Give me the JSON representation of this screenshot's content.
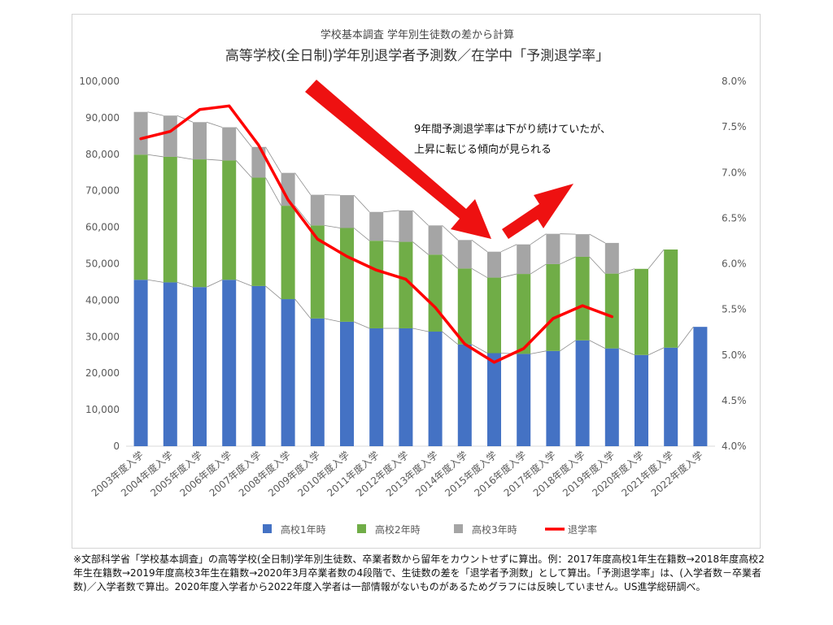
{
  "chart_data": {
    "type": "bar",
    "stacked": true,
    "subtitle": "学校基本調査 学年別生徒数の差から計算",
    "title": "高等学校(全日制)学年別退学者予測数／在学中「予測退学率」",
    "categories": [
      "2003年度入学",
      "2004年度入学",
      "2005年度入学",
      "2006年度入学",
      "2007年度入学",
      "2008年度入学",
      "2009年度入学",
      "2010年度入学",
      "2011年度入学",
      "2012年度入学",
      "2013年度入学",
      "2014年度入学",
      "2015年度入学",
      "2016年度入学",
      "2017年度入学",
      "2018年度入学",
      "2019年度入学",
      "2020年度入学",
      "2021年度入学",
      "2022年度入学"
    ],
    "y_left": {
      "ylim": [
        0,
        100000
      ],
      "ticks": [
        "0",
        "10,000",
        "20,000",
        "30,000",
        "40,000",
        "50,000",
        "60,000",
        "70,000",
        "80,000",
        "90,000",
        "100,000"
      ]
    },
    "y_right": {
      "ylim": [
        4.0,
        8.0
      ],
      "ticks": [
        "4.0%",
        "4.5%",
        "5.0%",
        "5.5%",
        "6.0%",
        "6.5%",
        "7.0%",
        "7.5%",
        "8.0%"
      ]
    },
    "series": [
      {
        "name": "高校1年時",
        "color": "#4472c4",
        "values": [
          45600,
          44900,
          43600,
          45600,
          43900,
          40300,
          35000,
          34100,
          32300,
          32300,
          31400,
          27900,
          25500,
          25300,
          26100,
          29000,
          26800,
          25000,
          27000,
          32700
        ]
      },
      {
        "name": "高校2年時",
        "color": "#70ad47",
        "values": [
          34300,
          34400,
          35000,
          32700,
          29700,
          25600,
          25500,
          25700,
          24000,
          23700,
          21100,
          20800,
          20700,
          21900,
          23800,
          22900,
          20500,
          23600,
          26900,
          null
        ]
      },
      {
        "name": "高校3年時",
        "color": "#a5a5a5",
        "values": [
          11700,
          11300,
          10200,
          9100,
          8400,
          9000,
          8400,
          9000,
          7900,
          8600,
          8000,
          7800,
          7100,
          8100,
          8300,
          6200,
          8400,
          null,
          null,
          null
        ]
      },
      {
        "name": "退学率",
        "color": "#ff0000",
        "type": "line",
        "axis": "right",
        "values": [
          7.37,
          7.45,
          7.69,
          7.73,
          7.3,
          6.7,
          6.27,
          6.08,
          5.93,
          5.83,
          5.52,
          5.12,
          4.92,
          5.07,
          5.4,
          5.54,
          5.42,
          null,
          null,
          null
        ]
      }
    ],
    "legend_position": "bottom",
    "annotation": {
      "line1": "9年間予測退学率は下がり続けていたが、",
      "line2": "上昇に転じる傾向が見られる"
    }
  },
  "footnote": "※文部科学省「学校基本調査」の高等学校(全日制)学年別生徒数、卒業者数から留年をカウントせずに算出。例：2017年度高校1年生在籍数→2018年度高校2年生在籍数→2019年度高校3年生在籍数→2020年3月卒業者数の4段階で、生徒数の差を「退学者予測数」として算出。「予測退学率」は、(入学者数－卒業者数)／入学者数で算出。2020年度入学者から2022年度入学者は一部情報がないものがあるためグラフには反映していません。US進学総研調べ。",
  "colors": {
    "arrow": "#ee1111",
    "connector": "#8c8c8c",
    "axis": "#d9d9d9"
  }
}
